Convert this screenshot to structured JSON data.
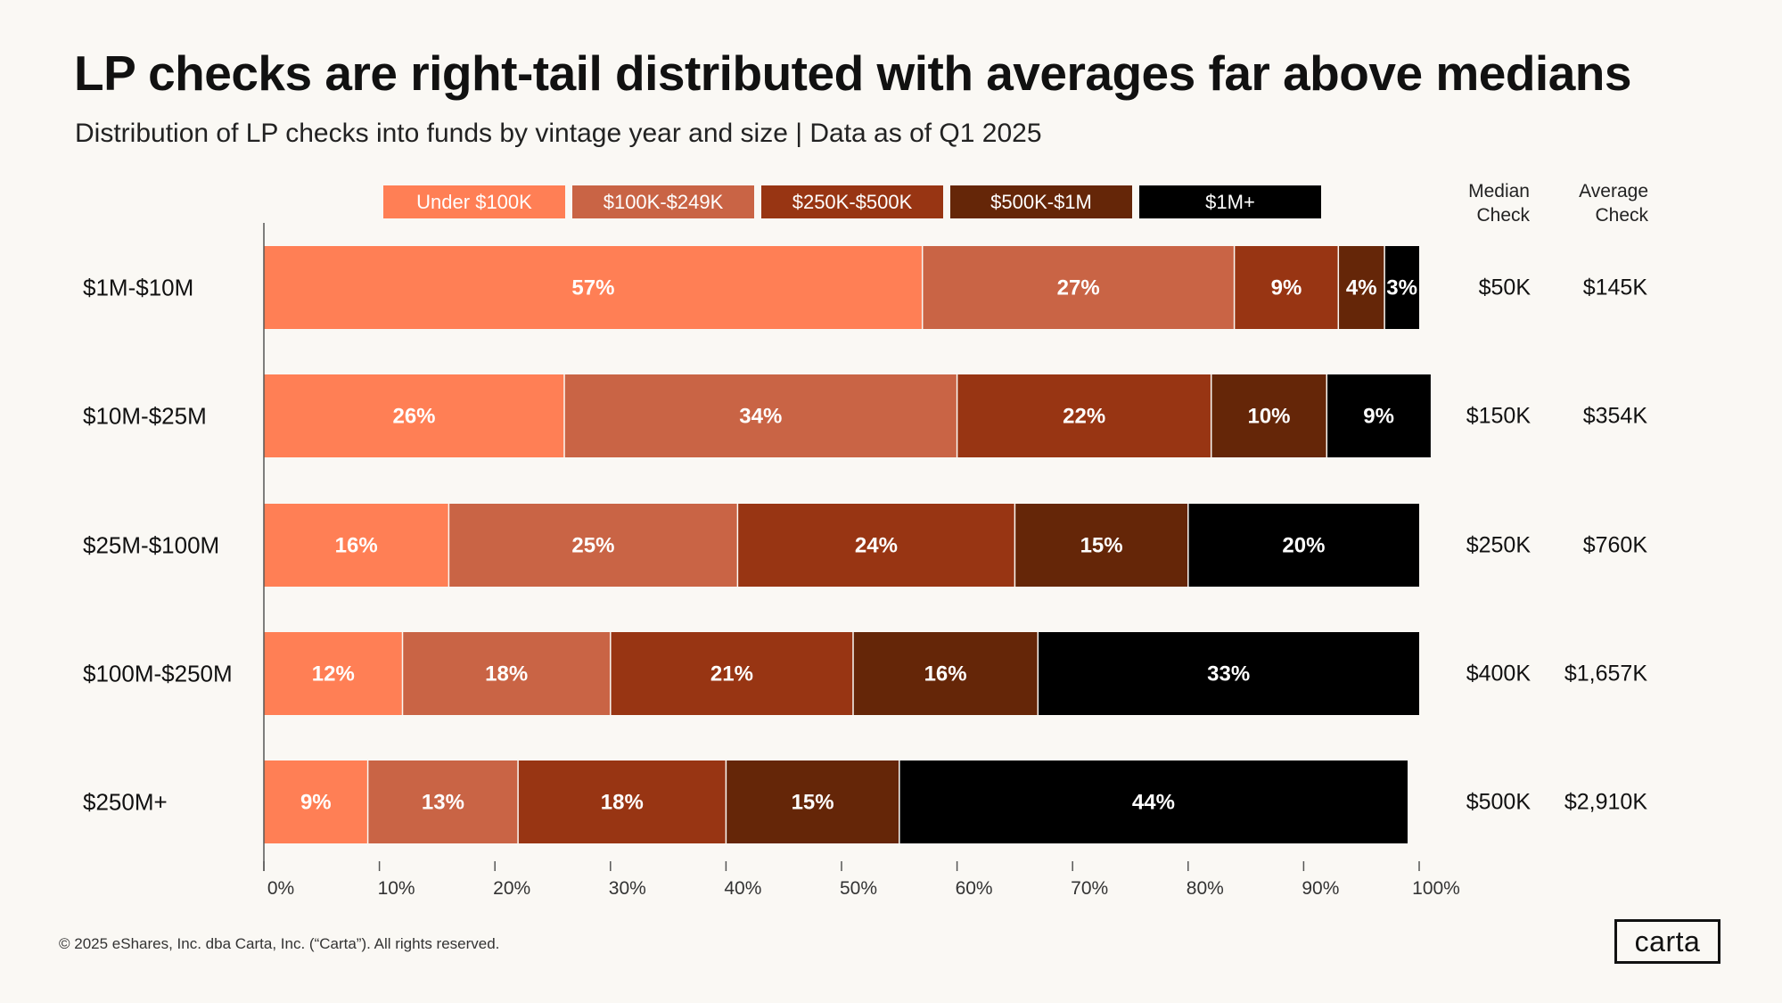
{
  "header": {
    "title": "LP checks are right-tail distributed with averages far above medians",
    "subtitle": "Distribution of LP checks  into funds by vintage year and size | Data as of Q1 2025"
  },
  "columns": {
    "median_header_line1": "Median",
    "median_header_line2": "Check",
    "average_header_line1": "Average",
    "average_header_line2": "Check"
  },
  "rows": [
    {
      "label": "$1M-$10M",
      "median": "$50K",
      "average": "$145K"
    },
    {
      "label": "$10M-$25M",
      "median": "$150K",
      "average": "$354K"
    },
    {
      "label": "$25M-$100M",
      "median": "$250K",
      "average": "$760K"
    },
    {
      "label": "$100M-$250M",
      "median": "$400K",
      "average": "$1,657K"
    },
    {
      "label": "$250M+",
      "median": "$500K",
      "average": "$2,910K"
    }
  ],
  "chart_data": {
    "type": "bar",
    "orientation": "horizontal",
    "stacked": true,
    "title": "LP checks are right-tail distributed with averages far above medians",
    "categories": [
      "$1M-$10M",
      "$10M-$25M",
      "$25M-$100M",
      "$100M-$250M",
      "$250M+"
    ],
    "series": [
      {
        "name": "Under $100K",
        "color": "#ff7f55",
        "values": [
          57,
          26,
          16,
          12,
          9
        ],
        "labels": [
          "57%",
          "26%",
          "16%",
          "12%",
          "9%"
        ]
      },
      {
        "name": "$100K-$249K",
        "color": "#c96445",
        "values": [
          27,
          34,
          25,
          18,
          13
        ],
        "labels": [
          "27%",
          "34%",
          "25%",
          "18%",
          "13%"
        ]
      },
      {
        "name": "$250K-$500K",
        "color": "#983513",
        "values": [
          9,
          22,
          24,
          21,
          18
        ],
        "labels": [
          "9%",
          "22%",
          "24%",
          "21%",
          "18%"
        ]
      },
      {
        "name": "$500K-$1M",
        "color": "#652608",
        "values": [
          4,
          10,
          15,
          16,
          15
        ],
        "labels": [
          "4%",
          "10%",
          "15%",
          "16%",
          "15%"
        ]
      },
      {
        "name": "$1M+",
        "color": "#000000",
        "values": [
          3,
          9,
          20,
          33,
          44
        ],
        "labels": [
          "3%",
          "9%",
          "20%",
          "33%",
          "44%"
        ]
      }
    ],
    "xlim": [
      0,
      100
    ],
    "xticks": [
      "0%",
      "10%",
      "20%",
      "30%",
      "40%",
      "50%",
      "60%",
      "70%",
      "80%",
      "90%",
      "100%"
    ],
    "legend": "top"
  },
  "footer": {
    "copyright": "© 2025 eShares, Inc. dba Carta, Inc. (“Carta”). All rights reserved.",
    "logo": "carta"
  }
}
